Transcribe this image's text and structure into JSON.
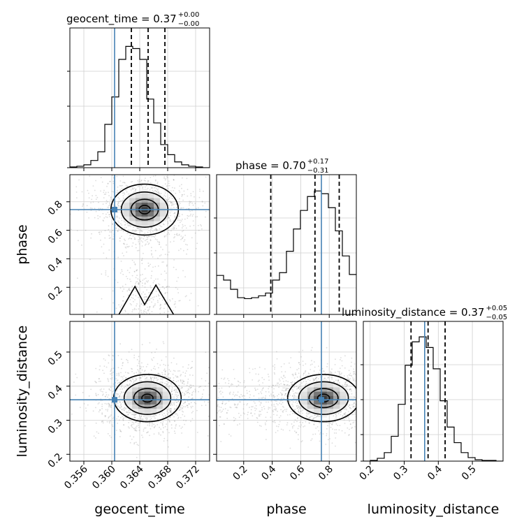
{
  "chart_data": {
    "type": "corner",
    "parameters": [
      "geocent_time",
      "phase",
      "luminosity_distance"
    ],
    "truths": {
      "geocent_time": 0.3604,
      "phase": 0.745,
      "luminosity_distance": 0.36
    },
    "truth_color": "#4682b4",
    "ranges": {
      "geocent_time": [
        0.354,
        0.374
      ],
      "phase": [
        0.01,
        0.99
      ],
      "luminosity_distance": [
        0.18,
        0.59
      ]
    },
    "ticks": {
      "geocent_time": {
        "values": [
          0.356,
          0.36,
          0.364,
          0.368,
          0.372
        ],
        "labels": [
          "0.356",
          "0.360",
          "0.364",
          "0.368",
          "0.372"
        ]
      },
      "phase": {
        "values": [
          0.2,
          0.4,
          0.6,
          0.8
        ],
        "labels": [
          "0.2",
          "0.4",
          "0.6",
          "0.8"
        ]
      },
      "luminosity_distance": {
        "values": [
          0.2,
          0.3,
          0.4,
          0.5
        ],
        "labels": [
          "0.2",
          "0.3",
          "0.4",
          "0.5"
        ]
      }
    },
    "axis_labels": {
      "geocent_time": "geocent_time",
      "phase": "phase",
      "luminosity_distance": "luminosity_distance"
    },
    "titles": [
      {
        "param": "geocent_time",
        "text": "geocent_time = 0.37",
        "plus": "+0.00",
        "minus": "−0.00"
      },
      {
        "param": "phase",
        "text": "phase = 0.70",
        "plus": "+0.17",
        "minus": "−0.31"
      },
      {
        "param": "luminosity_distance",
        "text": "luminosity_distance = 0.37",
        "plus": "+0.05",
        "minus": "−0.05"
      }
    ],
    "quantiles": {
      "geocent_time": [
        0.3628,
        0.3652,
        0.3676
      ],
      "phase": [
        0.39,
        0.7,
        0.87
      ],
      "luminosity_distance": [
        0.32,
        0.37,
        0.42
      ]
    },
    "histograms": {
      "geocent_time": {
        "edges_start": 0.354,
        "bin_width": 0.001,
        "counts": [
          1,
          2,
          4,
          10,
          22,
          60,
          98,
          150,
          168,
          165,
          150,
          95,
          62,
          32,
          18,
          8,
          4,
          2,
          1,
          0
        ],
        "ymax": 180
      },
      "phase": {
        "edges_start": 0.01,
        "bin_width": 0.049,
        "counts": [
          42,
          37,
          27,
          18,
          17,
          18,
          20,
          23,
          37,
          45,
          68,
          92,
          112,
          127,
          133,
          130,
          115,
          90,
          63,
          43
        ],
        "ymax": 140
      },
      "luminosity_distance": {
        "edges_start": 0.18,
        "bin_width": 0.0205,
        "counts": [
          0,
          1,
          4,
          12,
          35,
          80,
          135,
          168,
          175,
          160,
          130,
          85,
          48,
          26,
          12,
          5,
          2,
          1,
          1,
          0
        ],
        "ymax": 183
      }
    },
    "panels_2d": [
      {
        "x": "geocent_time",
        "y": "phase",
        "center": [
          0.3647,
          0.745
        ],
        "spread": [
          0.0023,
          0.085
        ],
        "tail": true
      },
      {
        "x": "geocent_time",
        "y": "luminosity_distance",
        "center": [
          0.3651,
          0.365
        ],
        "spread": [
          0.0023,
          0.033
        ],
        "tail": false
      },
      {
        "x": "phase",
        "y": "luminosity_distance",
        "center": [
          0.76,
          0.365
        ],
        "spread": [
          0.12,
          0.033
        ],
        "tail": false
      }
    ],
    "grid": true
  }
}
